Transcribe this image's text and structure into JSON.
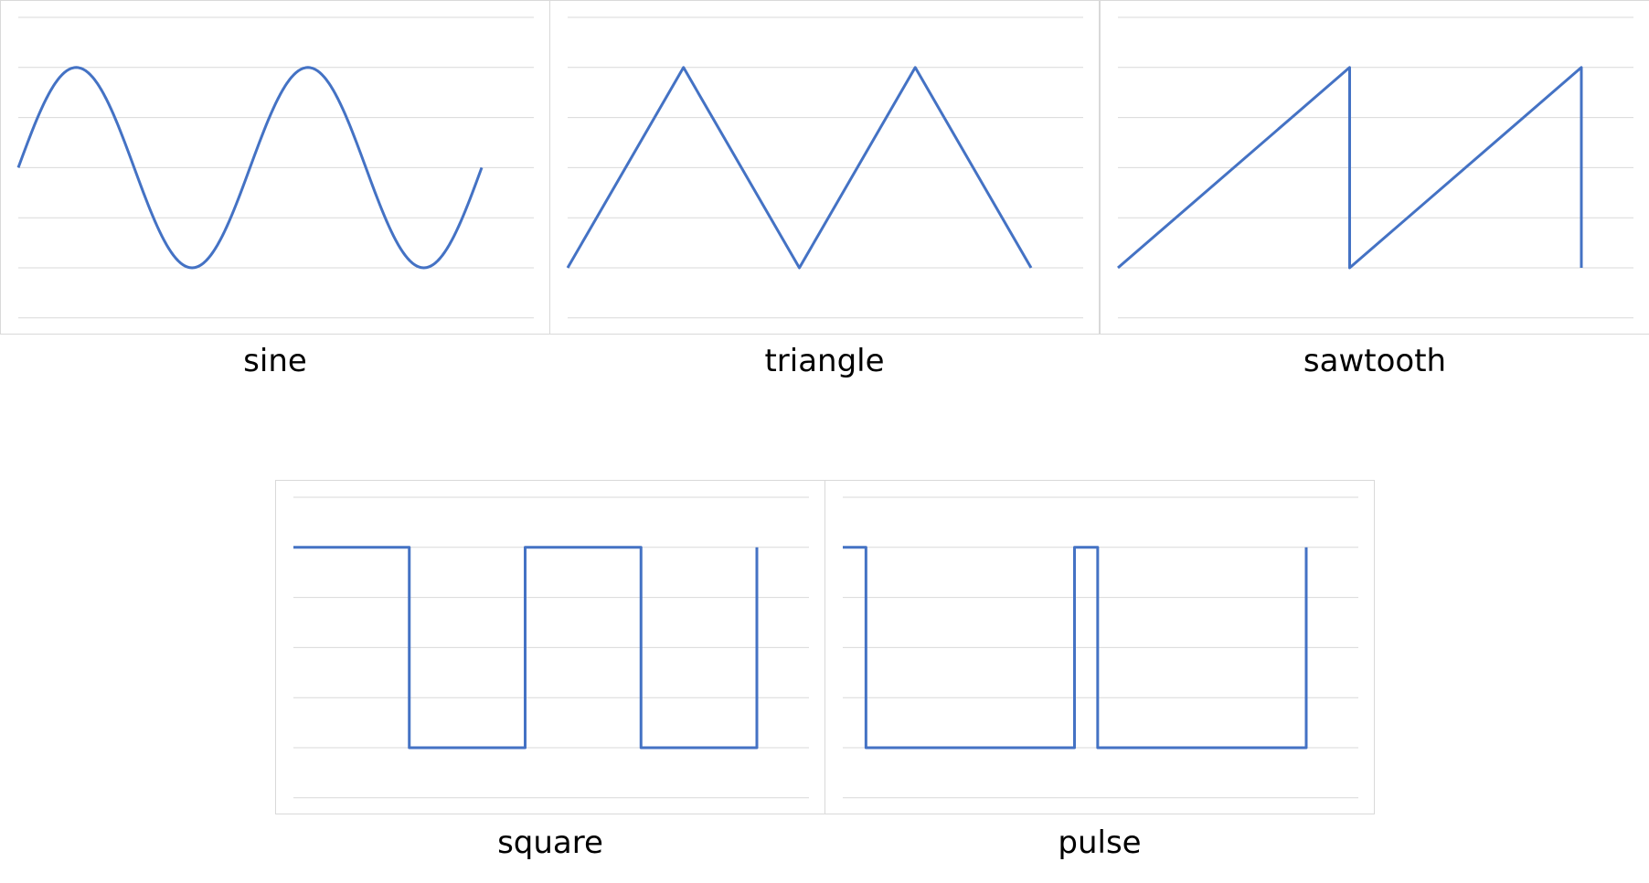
{
  "colors": {
    "line": "#4472c4",
    "grid": "#d9d9d9",
    "border": "#d9d9d9"
  },
  "chart_data": [
    {
      "type": "line",
      "title": "sine",
      "grid": true,
      "ylim": [
        -1.5,
        1.5
      ],
      "xlim": [
        0,
        8
      ],
      "series": [
        {
          "x": [],
          "values": []
        }
      ],
      "shape": "sine",
      "cycles": 2
    },
    {
      "type": "line",
      "title": "triangle",
      "grid": true,
      "ylim": [
        -1.5,
        1.5
      ],
      "xlim": [
        0,
        8
      ],
      "series": [
        {
          "x": [
            0,
            2,
            4,
            6,
            8
          ],
          "values": [
            -1,
            1,
            -1,
            1,
            -1
          ]
        }
      ]
    },
    {
      "type": "line",
      "title": "sawtooth",
      "grid": true,
      "ylim": [
        -1.5,
        1.5
      ],
      "xlim": [
        0,
        8
      ],
      "series": [
        {
          "x": [
            0,
            4,
            4,
            8,
            8
          ],
          "values": [
            -1,
            1,
            -1,
            1,
            -1
          ]
        }
      ]
    },
    {
      "type": "line",
      "title": "square",
      "grid": true,
      "ylim": [
        -1.5,
        1.5
      ],
      "xlim": [
        0,
        8
      ],
      "series": [
        {
          "x": [
            0,
            2,
            2,
            4,
            4,
            6,
            6,
            8,
            8
          ],
          "values": [
            1,
            1,
            -1,
            -1,
            1,
            1,
            -1,
            -1,
            1
          ]
        }
      ]
    },
    {
      "type": "line",
      "title": "pulse",
      "grid": true,
      "ylim": [
        -1.5,
        1.5
      ],
      "xlim": [
        0,
        8
      ],
      "series": [
        {
          "x": [
            0,
            0.4,
            0.4,
            4,
            4,
            4.4,
            4.4,
            8,
            8
          ],
          "values": [
            1,
            1,
            -1,
            -1,
            1,
            1,
            -1,
            -1,
            1
          ]
        }
      ]
    }
  ]
}
